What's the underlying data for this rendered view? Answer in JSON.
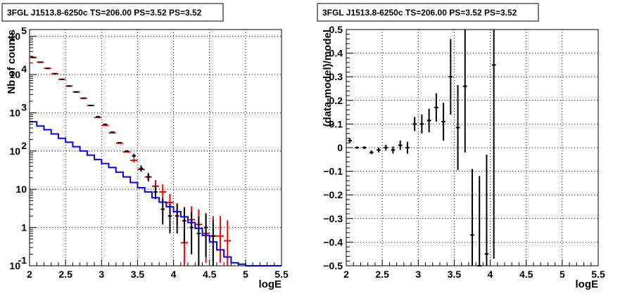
{
  "chart_data": [
    {
      "type": "histogram",
      "title": "3FGL J1513.8-6250c TS=206.00 PS=3.52 PS=3.52",
      "xlabel": "logE",
      "ylabel": "Nb of counts",
      "xlim": [
        2,
        5.5
      ],
      "ylim": [
        0.1,
        150000
      ],
      "yscale": "log",
      "grid": true,
      "xticks": [
        "2",
        "2.5",
        "3",
        "3.5",
        "4",
        "4.5",
        "5",
        "5.5"
      ],
      "yticks": [
        {
          "v": 0.1,
          "base": "10",
          "exp": "-1"
        },
        {
          "v": 1,
          "base": "1",
          "exp": ""
        },
        {
          "v": 10,
          "base": "10",
          "exp": ""
        },
        {
          "v": 100,
          "base": "10",
          "exp": "2"
        },
        {
          "v": 1000,
          "base": "10",
          "exp": "3"
        },
        {
          "v": 10000,
          "base": "10",
          "exp": "4"
        },
        {
          "v": 100000,
          "base": "10",
          "exp": "5"
        }
      ],
      "series": [
        {
          "color": "#ff0000",
          "style": "markers-with-errors",
          "x": [
            2.05,
            2.15,
            2.25,
            2.35,
            2.45,
            2.55,
            2.65,
            2.75,
            2.85,
            2.95,
            3.05,
            3.15,
            3.25,
            3.35,
            3.45,
            3.55,
            3.65,
            3.75,
            3.85,
            3.95,
            4.05,
            4.15,
            4.25,
            4.35,
            4.45,
            4.55,
            4.65,
            4.75
          ],
          "y": [
            28000,
            21000,
            14500,
            10500,
            7500,
            5000,
            3500,
            2400,
            1550,
            750,
            470,
            300,
            160,
            95,
            57,
            33,
            21,
            12,
            8.5,
            4.5,
            2.6,
            0.4,
            1.6,
            1.2,
            0.7,
            0.6,
            0.6,
            0.45
          ],
          "yerr_low": [
            0,
            0,
            0,
            0,
            0,
            0,
            0,
            0,
            0,
            0,
            0,
            0,
            0,
            0,
            6,
            4,
            5,
            4.5,
            4,
            2.3,
            1.4,
            0.3,
            0.55,
            0.47,
            0.58,
            0.47,
            0.48,
            0.37
          ],
          "yerr_high": [
            0,
            0,
            0,
            0,
            0,
            0,
            0,
            0,
            0,
            0,
            0,
            0,
            0,
            0,
            6,
            5,
            6,
            5.5,
            5,
            3,
            1.7,
            0.9,
            2,
            1.8,
            1.7,
            1.4,
            1.4,
            1.1
          ]
        },
        {
          "color": "#000000",
          "style": "markers-with-errors",
          "x": [
            2.05,
            2.15,
            2.25,
            2.35,
            2.45,
            2.55,
            2.65,
            2.75,
            2.85,
            2.95,
            3.05,
            3.15,
            3.25,
            3.35,
            3.45,
            3.55,
            3.65,
            3.75,
            3.85,
            3.95,
            4.05,
            4.15,
            4.25,
            4.35,
            4.45,
            4.55
          ],
          "y": [
            28000,
            21000,
            14500,
            10500,
            7500,
            5000,
            3500,
            2400,
            1550,
            790,
            500,
            310,
            165,
            100,
            75,
            35,
            21,
            8.5,
            3,
            2,
            2,
            1.5,
            1,
            0.7,
            1,
            0.6
          ],
          "yerr_low": [
            0,
            0,
            0,
            0,
            0,
            0,
            0,
            0,
            0,
            0,
            0,
            0,
            0,
            0,
            9,
            6,
            4.5,
            3,
            1.8,
            1.3,
            1.3,
            1.1,
            0.8,
            0.6,
            0.83,
            0.5
          ],
          "yerr_high": [
            0,
            0,
            0,
            0,
            0,
            0,
            0,
            0,
            0,
            0,
            0,
            0,
            0,
            0,
            10,
            7,
            5,
            4,
            2.8,
            2.2,
            2.2,
            1.9,
            1.5,
            1.2,
            1.3,
            1
          ]
        },
        {
          "color": "#0000ff",
          "style": "step",
          "edges": [
            2.0,
            2.1,
            2.2,
            2.3,
            2.4,
            2.5,
            2.6,
            2.7,
            2.8,
            2.9,
            3.0,
            3.1,
            3.2,
            3.3,
            3.4,
            3.5,
            3.6,
            3.7,
            3.8,
            3.9,
            4.0,
            4.1,
            4.2,
            4.3,
            4.4,
            4.5,
            4.6,
            4.7,
            4.8,
            4.9,
            5.0,
            5.5
          ],
          "values": [
            580,
            450,
            360,
            280,
            215,
            170,
            130,
            100,
            78,
            60,
            47,
            37,
            28,
            21,
            15,
            11,
            8.5,
            6,
            4.6,
            3.5,
            2.6,
            1.9,
            1.35,
            0.95,
            0.62,
            0.42,
            0.26,
            0.17,
            0.12,
            0.11,
            0.1
          ]
        }
      ]
    },
    {
      "type": "scatter",
      "title": "3FGL J1513.8-6250c TS=206.00 PS=3.52 PS=3.52",
      "xlabel": "logE",
      "ylabel": "(data-model)/model",
      "xlim": [
        2,
        5.5
      ],
      "ylim": [
        -0.5,
        0.5
      ],
      "grid": true,
      "xticks": [
        "2",
        "2.5",
        "3",
        "3.5",
        "4",
        "4.5",
        "5",
        "5.5"
      ],
      "yticks": [
        "−0.5",
        "−0.4",
        "−0.3",
        "−0.2",
        "−0.1",
        "0",
        "0.1",
        "0.2",
        "0.3",
        "0.4",
        "0.5"
      ],
      "series": [
        {
          "color": "#000000",
          "x": [
            2.05,
            2.15,
            2.25,
            2.35,
            2.45,
            2.55,
            2.65,
            2.75,
            2.85,
            2.95,
            3.05,
            3.15,
            3.25,
            3.35,
            3.45,
            3.55,
            3.65,
            3.75,
            3.85,
            3.95,
            4.05
          ],
          "y": [
            0.03,
            0.0,
            0.0,
            -0.02,
            -0.01,
            0.0,
            -0.01,
            0.01,
            0.0,
            0.1,
            0.1,
            0.115,
            0.17,
            0.11,
            0.3,
            0.085,
            0.26,
            -0.37,
            -0.5,
            -0.45,
            0.35
          ],
          "yerr": [
            0.01,
            0.005,
            0.006,
            0.008,
            0.01,
            0.012,
            0.015,
            0.02,
            0.025,
            0.03,
            0.04,
            0.05,
            0.06,
            0.08,
            0.16,
            0.18,
            0.28,
            0.28,
            0.38,
            0.42,
            0.82
          ]
        }
      ]
    }
  ]
}
